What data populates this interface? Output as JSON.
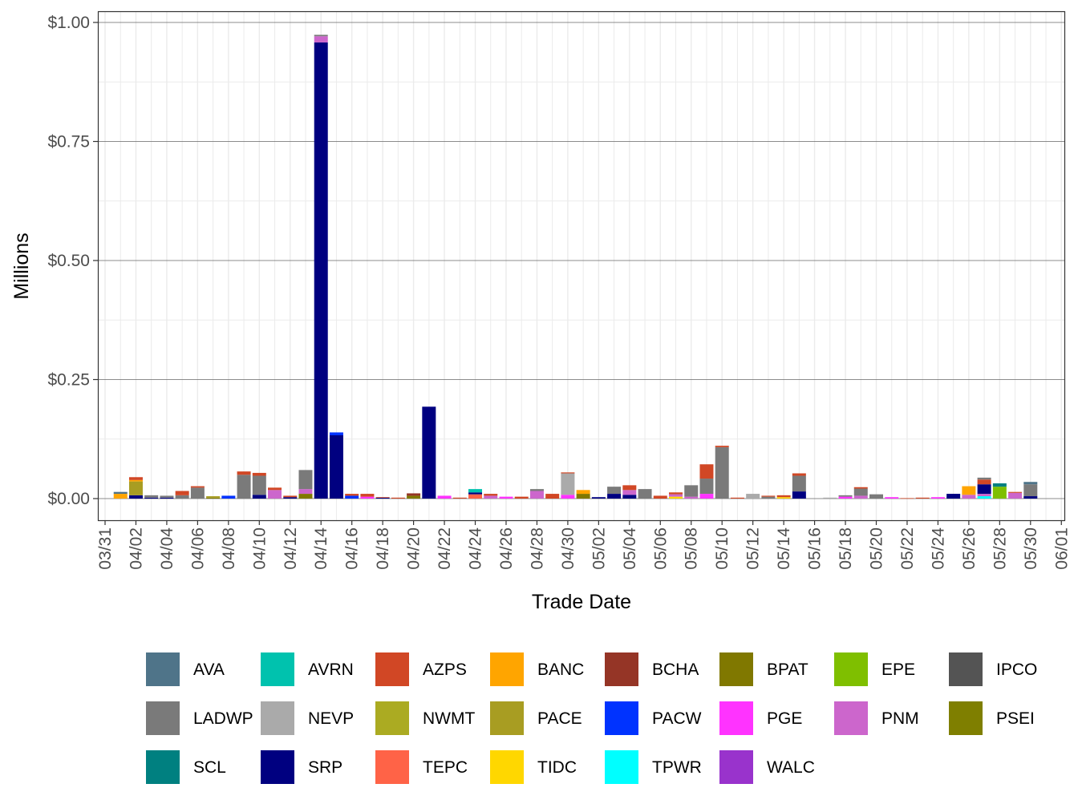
{
  "chart_data": {
    "type": "bar",
    "stacked": true,
    "xlabel": "Trade Date",
    "ylabel": "Millions",
    "ylim": [
      -0.05,
      1.02
    ],
    "y_ticks": [
      {
        "value": 0.0,
        "label": "$0.00"
      },
      {
        "value": 0.25,
        "label": "$0.25"
      },
      {
        "value": 0.5,
        "label": "$0.50"
      },
      {
        "value": 0.75,
        "label": "$0.75"
      },
      {
        "value": 1.0,
        "label": "$1.00"
      }
    ],
    "x_start": "03/31",
    "x_tick_labels": [
      "03/31",
      "04/02",
      "04/04",
      "04/06",
      "04/08",
      "04/10",
      "04/12",
      "04/14",
      "04/16",
      "04/18",
      "04/20",
      "04/22",
      "04/24",
      "04/26",
      "04/28",
      "04/30",
      "05/02",
      "05/04",
      "05/06",
      "05/08",
      "05/10",
      "05/12",
      "05/14",
      "05/16",
      "05/18",
      "05/20",
      "05/22",
      "05/24",
      "05/26",
      "05/28",
      "05/30",
      "06/01"
    ],
    "legend_position": "bottom",
    "grid": true,
    "colors": {
      "AVA": "#4F7489",
      "AVRN": "#00C2AE",
      "AZPS": "#D14725",
      "BANC": "#FFA500",
      "BCHA": "#953526",
      "BPAT": "#807800",
      "EPE": "#7FBF00",
      "IPCO": "#545454",
      "LADWP": "#7A7A7A",
      "NEVP": "#AAAAAA",
      "NWMT": "#ABAB22",
      "PACE": "#A89D22",
      "PACW": "#0033FF",
      "PGE": "#FF33FF",
      "PNM": "#CC66CC",
      "PSEI": "#7F7F00",
      "SCL": "#008080",
      "SRP": "#000080",
      "TEPC": "#FF6347",
      "TIDC": "#FFD700",
      "TPWR": "#00FFFF",
      "WALC": "#9933CC"
    },
    "legend": [
      "AVA",
      "AVRN",
      "AZPS",
      "BANC",
      "BCHA",
      "BPAT",
      "EPE",
      "IPCO",
      "LADWP",
      "NEVP",
      "NWMT",
      "PACE",
      "PACW",
      "PGE",
      "PNM",
      "PSEI",
      "SCL",
      "SRP",
      "TEPC",
      "TIDC",
      "TPWR",
      "WALC"
    ],
    "series": [
      {
        "date": "04/01",
        "stack": [
          [
            "BANC",
            0.01
          ],
          [
            "AVA",
            0.004
          ]
        ]
      },
      {
        "date": "04/02",
        "stack": [
          [
            "SRP",
            0.007
          ],
          [
            "PACE",
            0.029
          ],
          [
            "BANC",
            0.003
          ],
          [
            "AZPS",
            0.006
          ]
        ]
      },
      {
        "date": "04/03",
        "stack": [
          [
            "SRP",
            0.002
          ],
          [
            "LADWP",
            0.005
          ]
        ]
      },
      {
        "date": "04/04",
        "stack": [
          [
            "SRP",
            0.002
          ],
          [
            "LADWP",
            0.004
          ]
        ]
      },
      {
        "date": "04/05",
        "stack": [
          [
            "LADWP",
            0.007
          ],
          [
            "AZPS",
            0.009
          ]
        ]
      },
      {
        "date": "04/06",
        "stack": [
          [
            "LADWP",
            0.023
          ],
          [
            "AZPS",
            0.003
          ]
        ]
      },
      {
        "date": "04/07",
        "stack": [
          [
            "BPAT",
            0.002
          ],
          [
            "PACE",
            0.003
          ]
        ]
      },
      {
        "date": "04/08",
        "stack": [
          [
            "PACW",
            0.006
          ]
        ]
      },
      {
        "date": "04/09",
        "stack": [
          [
            "LADWP",
            0.05
          ],
          [
            "AZPS",
            0.007
          ]
        ]
      },
      {
        "date": "04/10",
        "stack": [
          [
            "SRP",
            0.008
          ],
          [
            "LADWP",
            0.04
          ],
          [
            "AZPS",
            0.006
          ]
        ]
      },
      {
        "date": "04/11",
        "stack": [
          [
            "PNM",
            0.018
          ],
          [
            "AZPS",
            0.005
          ]
        ]
      },
      {
        "date": "04/12",
        "stack": [
          [
            "SRP",
            0.003
          ],
          [
            "AZPS",
            0.003
          ]
        ]
      },
      {
        "date": "04/13",
        "stack": [
          [
            "BPAT",
            0.01
          ],
          [
            "PNM",
            0.01
          ],
          [
            "LADWP",
            0.04
          ]
        ]
      },
      {
        "date": "04/14",
        "stack": [
          [
            "SRP",
            0.958
          ],
          [
            "PNM",
            0.013
          ],
          [
            "LADWP",
            0.003
          ]
        ]
      },
      {
        "date": "04/15",
        "stack": [
          [
            "SRP",
            0.133
          ],
          [
            "PACW",
            0.006
          ]
        ]
      },
      {
        "date": "04/16",
        "stack": [
          [
            "PACW",
            0.006
          ],
          [
            "AZPS",
            0.004
          ]
        ]
      },
      {
        "date": "04/17",
        "stack": [
          [
            "PGE",
            0.004
          ],
          [
            "AZPS",
            0.006
          ]
        ]
      },
      {
        "date": "04/18",
        "stack": [
          [
            "SRP",
            0.002
          ],
          [
            "AZPS",
            0.001
          ]
        ]
      },
      {
        "date": "04/19",
        "stack": [
          [
            "AZPS",
            0.002
          ]
        ]
      },
      {
        "date": "04/20",
        "stack": [
          [
            "BPAT",
            0.006
          ],
          [
            "BCHA",
            0.005
          ]
        ]
      },
      {
        "date": "04/21",
        "stack": [
          [
            "SRP",
            0.193
          ]
        ]
      },
      {
        "date": "04/22",
        "stack": [
          [
            "PGE",
            0.006
          ]
        ]
      },
      {
        "date": "04/23",
        "stack": [
          [
            "AZPS",
            0.002
          ]
        ]
      },
      {
        "date": "04/24",
        "stack": [
          [
            "TEPC",
            0.009
          ],
          [
            "SRP",
            0.004
          ],
          [
            "AVRN",
            0.007
          ]
        ]
      },
      {
        "date": "04/25",
        "stack": [
          [
            "PNM",
            0.006
          ],
          [
            "AZPS",
            0.004
          ]
        ]
      },
      {
        "date": "04/26",
        "stack": [
          [
            "PGE",
            0.004
          ]
        ]
      },
      {
        "date": "04/27",
        "stack": [
          [
            "AZPS",
            0.004
          ]
        ]
      },
      {
        "date": "04/28",
        "stack": [
          [
            "PNM",
            0.016
          ],
          [
            "LADWP",
            0.004
          ]
        ]
      },
      {
        "date": "04/29",
        "stack": [
          [
            "AZPS",
            0.01
          ]
        ]
      },
      {
        "date": "04/30",
        "stack": [
          [
            "PGE",
            0.008
          ],
          [
            "NEVP",
            0.045
          ],
          [
            "AZPS",
            0.002
          ]
        ]
      },
      {
        "date": "05/01",
        "stack": [
          [
            "BPAT",
            0.01
          ],
          [
            "BANC",
            0.008
          ]
        ]
      },
      {
        "date": "05/02",
        "stack": [
          [
            "SRP",
            0.003
          ]
        ]
      },
      {
        "date": "05/03",
        "stack": [
          [
            "SRP",
            0.01
          ],
          [
            "LADWP",
            0.015
          ]
        ]
      },
      {
        "date": "05/04",
        "stack": [
          [
            "SRP",
            0.008
          ],
          [
            "PNM",
            0.01
          ],
          [
            "AZPS",
            0.01
          ]
        ]
      },
      {
        "date": "05/05",
        "stack": [
          [
            "LADWP",
            0.02
          ]
        ]
      },
      {
        "date": "05/06",
        "stack": [
          [
            "AZPS",
            0.006
          ]
        ]
      },
      {
        "date": "05/07",
        "stack": [
          [
            "TIDC",
            0.004
          ],
          [
            "PNM",
            0.005
          ],
          [
            "AZPS",
            0.004
          ]
        ]
      },
      {
        "date": "05/08",
        "stack": [
          [
            "PNM",
            0.004
          ],
          [
            "LADWP",
            0.024
          ]
        ]
      },
      {
        "date": "05/09",
        "stack": [
          [
            "PGE",
            0.01
          ],
          [
            "LADWP",
            0.032
          ],
          [
            "AZPS",
            0.03
          ]
        ]
      },
      {
        "date": "05/10",
        "stack": [
          [
            "LADWP",
            0.108
          ],
          [
            "AZPS",
            0.003
          ]
        ]
      },
      {
        "date": "05/11",
        "stack": [
          [
            "AZPS",
            0.002
          ]
        ]
      },
      {
        "date": "05/12",
        "stack": [
          [
            "NEVP",
            0.01
          ]
        ]
      },
      {
        "date": "05/13",
        "stack": [
          [
            "LADWP",
            0.004
          ],
          [
            "AZPS",
            0.002
          ]
        ]
      },
      {
        "date": "05/14",
        "stack": [
          [
            "TIDC",
            0.003
          ],
          [
            "AZPS",
            0.004
          ]
        ]
      },
      {
        "date": "05/15",
        "stack": [
          [
            "SRP",
            0.015
          ],
          [
            "LADWP",
            0.033
          ],
          [
            "AZPS",
            0.005
          ]
        ]
      },
      {
        "date": "05/17",
        "stack": [
          [
            "NEVP",
            0.002
          ]
        ]
      },
      {
        "date": "05/18",
        "stack": [
          [
            "PGE",
            0.004
          ],
          [
            "LADWP",
            0.003
          ]
        ]
      },
      {
        "date": "05/19",
        "stack": [
          [
            "PNM",
            0.006
          ],
          [
            "LADWP",
            0.015
          ],
          [
            "AZPS",
            0.003
          ]
        ]
      },
      {
        "date": "05/20",
        "stack": [
          [
            "LADWP",
            0.009
          ]
        ]
      },
      {
        "date": "05/21",
        "stack": [
          [
            "PGE",
            0.003
          ]
        ]
      },
      {
        "date": "05/22",
        "stack": [
          [
            "AZPS",
            0.001
          ]
        ]
      },
      {
        "date": "05/23",
        "stack": [
          [
            "AZPS",
            0.002
          ]
        ]
      },
      {
        "date": "05/24",
        "stack": [
          [
            "PGE",
            0.003
          ]
        ]
      },
      {
        "date": "05/25",
        "stack": [
          [
            "SRP",
            0.01
          ]
        ]
      },
      {
        "date": "05/26",
        "stack": [
          [
            "PNM",
            0.008
          ],
          [
            "BANC",
            0.018
          ]
        ]
      },
      {
        "date": "05/27",
        "stack": [
          [
            "TPWR",
            0.005
          ],
          [
            "PNM",
            0.005
          ],
          [
            "SRP",
            0.02
          ],
          [
            "AZPS",
            0.01
          ],
          [
            "LADWP",
            0.004
          ]
        ]
      },
      {
        "date": "05/28",
        "stack": [
          [
            "EPE",
            0.025
          ],
          [
            "SCL",
            0.007
          ]
        ]
      },
      {
        "date": "05/29",
        "stack": [
          [
            "PNM",
            0.012
          ],
          [
            "AZPS",
            0.002
          ]
        ]
      },
      {
        "date": "05/30",
        "stack": [
          [
            "SRP",
            0.005
          ],
          [
            "LADWP",
            0.025
          ],
          [
            "AVA",
            0.005
          ]
        ]
      }
    ]
  }
}
